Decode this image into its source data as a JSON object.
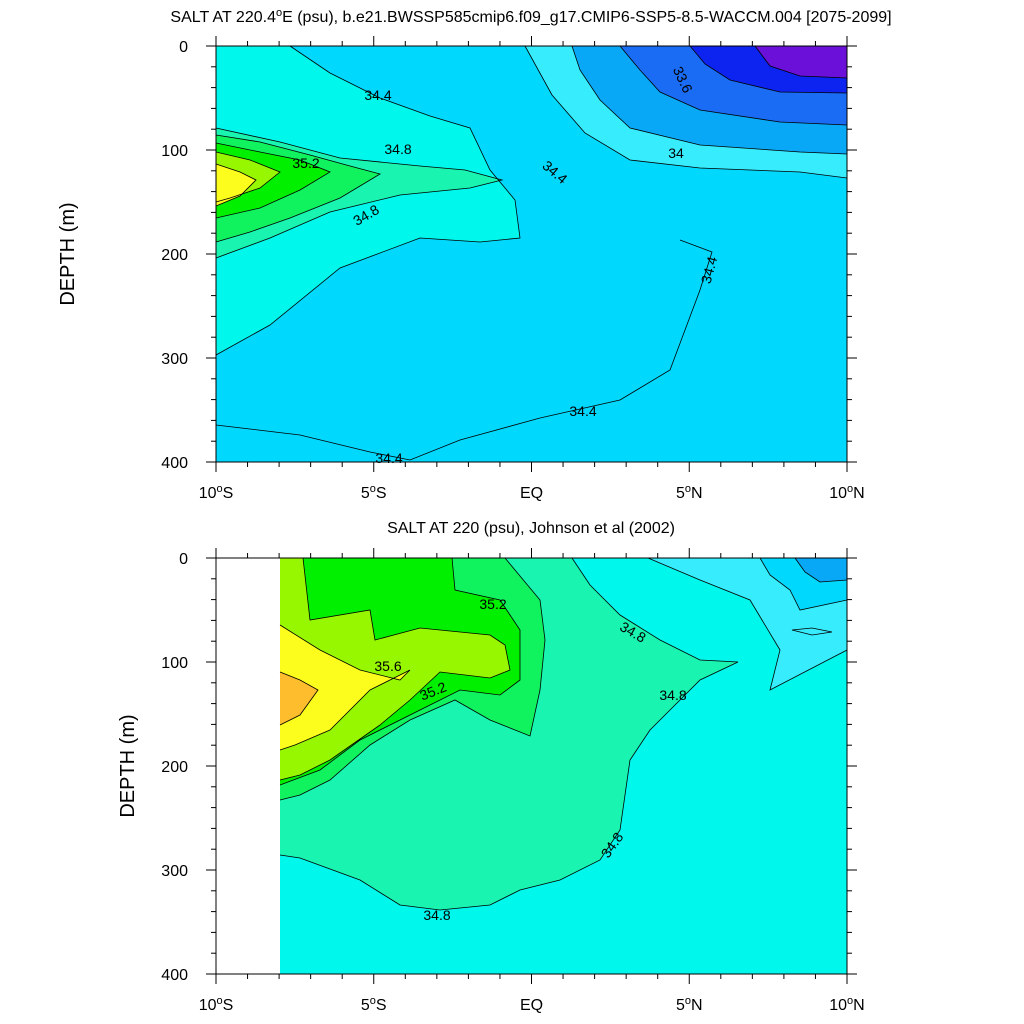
{
  "chart_data": [
    {
      "type": "contour",
      "title_prefix": "SALT AT 220.4",
      "title_sup": "o",
      "title_suffix": "E (psu), b.e21.BWSSP585cmip6.f09_g17.CMIP6-SSP5-8.5-WACCM.004 [2075-2099]",
      "ylabel": "DEPTH (m)",
      "ylim": [
        400,
        0
      ],
      "yticks": [
        "0",
        "100",
        "200",
        "300",
        "400"
      ],
      "xlim": [
        -10,
        10
      ],
      "xticks": [
        {
          "main": "10",
          "sup": "o",
          "tail": "S"
        },
        {
          "main": "5",
          "sup": "o",
          "tail": "S"
        },
        {
          "main": "EQ",
          "sup": "",
          "tail": ""
        },
        {
          "main": "5",
          "sup": "o",
          "tail": "N"
        },
        {
          "main": "10",
          "sup": "o",
          "tail": "N"
        }
      ],
      "contour_labels": [
        "34.4",
        "34.8",
        "35.2",
        "34.8",
        "34.4",
        "34.4",
        "33.6",
        "34",
        "34.4",
        "34.4"
      ]
    },
    {
      "type": "contour",
      "title": "SALT AT 220 (psu), Johnson et al (2002)",
      "ylabel": "DEPTH (m)",
      "ylim": [
        400,
        0
      ],
      "yticks": [
        "0",
        "100",
        "200",
        "300",
        "400"
      ],
      "xlim": [
        -10,
        10
      ],
      "xticks": [
        {
          "main": "10",
          "sup": "o",
          "tail": "S"
        },
        {
          "main": "5",
          "sup": "o",
          "tail": "S"
        },
        {
          "main": "EQ",
          "sup": "",
          "tail": ""
        },
        {
          "main": "5",
          "sup": "o",
          "tail": "N"
        },
        {
          "main": "10",
          "sup": "o",
          "tail": "N"
        }
      ],
      "contour_labels": [
        "35.2",
        "34.8",
        "35.6",
        "35.2",
        "34.8",
        "34.8",
        "34.8"
      ]
    }
  ],
  "colors": {
    "s33_6": "#6a10d8",
    "s33_8": "#0d24f0",
    "s34_0": "#1a6cf5",
    "s34_2": "#09a8f7",
    "s34_4": "#00d8fe",
    "s34_6": "#37ecfd",
    "s34_8": "#00f7ec",
    "s35_0": "#19f4b0",
    "s35_2": "#10f35f",
    "s35_4": "#00f000",
    "s35_6": "#97f700",
    "s35_8": "#fdfd1d",
    "s36_0": "#fdbd2d"
  }
}
